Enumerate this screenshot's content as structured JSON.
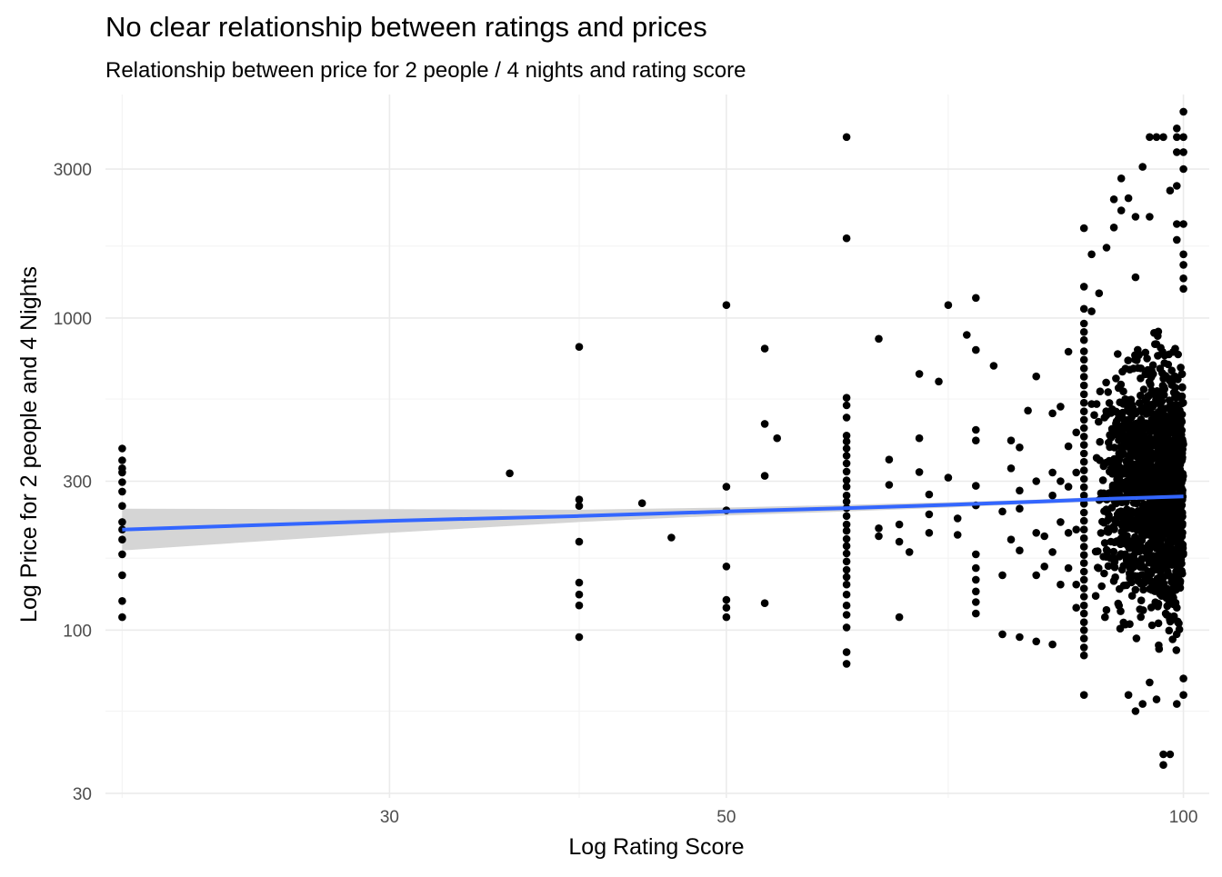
{
  "chart_data": {
    "type": "scatter",
    "title": "No clear relationship between ratings and prices",
    "subtitle": "Relationship between price for 2 people / 4 nights and rating score",
    "xlabel": "Log Rating Score",
    "ylabel": "Log Price for 2 people and 4 Nights",
    "x_scale": "log10",
    "y_scale": "log10",
    "xlim": [
      19.5,
      104
    ],
    "ylim": [
      29,
      5200
    ],
    "x_ticks": [
      30,
      50,
      100
    ],
    "x_tick_labels": [
      "30",
      "50",
      "100"
    ],
    "x_minor_gridlines": [
      20,
      40,
      70
    ],
    "y_ticks": [
      30,
      100,
      300,
      1000,
      3000
    ],
    "y_tick_labels": [
      "30",
      "100",
      "300",
      "1000",
      "3000"
    ],
    "y_minor_gridlines": [
      55,
      170,
      550,
      1700
    ],
    "grid": true,
    "legend": "none",
    "colors": {
      "points": "#000000",
      "trend_line": "#3366FF",
      "confidence_band": "#d3d3d3",
      "grid_major": "#ebebeb",
      "grid_minor": "#f4f4f4",
      "title": "#000000",
      "tick_label": "#4d4d4d"
    },
    "trend": {
      "method": "linear fit on log-log scale with confidence band",
      "x": [
        20,
        30,
        40,
        50,
        60,
        70,
        80,
        90,
        100
      ],
      "y": [
        210,
        224,
        232,
        240,
        246,
        252,
        258,
        264,
        268
      ],
      "ci_lower": [
        180,
        205,
        222,
        233,
        240,
        247,
        254,
        259,
        263
      ],
      "ci_upper": [
        245,
        244,
        243,
        247,
        252,
        257,
        262,
        268,
        273
      ]
    },
    "points": [
      [
        20,
        382
      ],
      [
        20,
        350
      ],
      [
        20,
        330
      ],
      [
        20,
        320
      ],
      [
        20,
        298
      ],
      [
        20,
        278
      ],
      [
        20,
        250
      ],
      [
        20,
        222
      ],
      [
        20,
        210
      ],
      [
        20,
        195
      ],
      [
        20,
        175
      ],
      [
        20,
        150
      ],
      [
        20,
        124
      ],
      [
        20,
        110
      ],
      [
        36,
        318
      ],
      [
        40,
        808
      ],
      [
        40,
        262
      ],
      [
        40,
        250
      ],
      [
        40,
        192
      ],
      [
        40,
        142
      ],
      [
        40,
        130
      ],
      [
        40,
        120
      ],
      [
        40,
        95
      ],
      [
        44,
        255
      ],
      [
        46,
        198
      ],
      [
        50,
        1100
      ],
      [
        50,
        288
      ],
      [
        50,
        242
      ],
      [
        50,
        160
      ],
      [
        50,
        125
      ],
      [
        50,
        118
      ],
      [
        50,
        110
      ],
      [
        53,
        798
      ],
      [
        53,
        458
      ],
      [
        53,
        312
      ],
      [
        53,
        122
      ],
      [
        54,
        412
      ],
      [
        60,
        3800
      ],
      [
        60,
        1800
      ],
      [
        60,
        555
      ],
      [
        60,
        525
      ],
      [
        60,
        480
      ],
      [
        60,
        420
      ],
      [
        60,
        402
      ],
      [
        60,
        382
      ],
      [
        60,
        362
      ],
      [
        60,
        342
      ],
      [
        60,
        322
      ],
      [
        60,
        302
      ],
      [
        60,
        288
      ],
      [
        60,
        270
      ],
      [
        60,
        258
      ],
      [
        60,
        246
      ],
      [
        60,
        232
      ],
      [
        60,
        218
      ],
      [
        60,
        208
      ],
      [
        60,
        196
      ],
      [
        60,
        186
      ],
      [
        60,
        176
      ],
      [
        60,
        166
      ],
      [
        60,
        156
      ],
      [
        60,
        148
      ],
      [
        60,
        140
      ],
      [
        60,
        130
      ],
      [
        60,
        120
      ],
      [
        60,
        112
      ],
      [
        60,
        102
      ],
      [
        60,
        85
      ],
      [
        60,
        78
      ],
      [
        63,
        858
      ],
      [
        63,
        212
      ],
      [
        63,
        200
      ],
      [
        64,
        352
      ],
      [
        64,
        292
      ],
      [
        65,
        218
      ],
      [
        65,
        192
      ],
      [
        65,
        110
      ],
      [
        66,
        178
      ],
      [
        67,
        321
      ],
      [
        67,
        412
      ],
      [
        67,
        662
      ],
      [
        68,
        272
      ],
      [
        68,
        235
      ],
      [
        68,
        205
      ],
      [
        69,
        626
      ],
      [
        70,
        1100
      ],
      [
        70,
        308
      ],
      [
        71,
        228
      ],
      [
        71,
        202
      ],
      [
        72,
        883
      ],
      [
        73,
        1160
      ],
      [
        73,
        790
      ],
      [
        73,
        438
      ],
      [
        73,
        405
      ],
      [
        73,
        290
      ],
      [
        73,
        251
      ],
      [
        73,
        175
      ],
      [
        73,
        158
      ],
      [
        73,
        145
      ],
      [
        73,
        133
      ],
      [
        73,
        123
      ],
      [
        73,
        113
      ],
      [
        75,
        703
      ],
      [
        76,
        240
      ],
      [
        76,
        150
      ],
      [
        76,
        97
      ],
      [
        77,
        405
      ],
      [
        77,
        330
      ],
      [
        77,
        195
      ],
      [
        78,
        385
      ],
      [
        78,
        280
      ],
      [
        78,
        245
      ],
      [
        78,
        180
      ],
      [
        78,
        95
      ],
      [
        79,
        505
      ],
      [
        80,
        650
      ],
      [
        80,
        300
      ],
      [
        80,
        205
      ],
      [
        80,
        150
      ],
      [
        80,
        92
      ],
      [
        81,
        200
      ],
      [
        81,
        160
      ],
      [
        82,
        495
      ],
      [
        82,
        320
      ],
      [
        82,
        270
      ],
      [
        82,
        178
      ],
      [
        82,
        90
      ],
      [
        83,
        520
      ],
      [
        83,
        300
      ],
      [
        83,
        222
      ],
      [
        83,
        140
      ],
      [
        84,
        780
      ],
      [
        84,
        388
      ],
      [
        84,
        288
      ],
      [
        84,
        205
      ],
      [
        84,
        158
      ],
      [
        85,
        430
      ],
      [
        85,
        320
      ],
      [
        85,
        210
      ],
      [
        85,
        140
      ],
      [
        85,
        118
      ],
      [
        86,
        1940
      ],
      [
        86,
        1260
      ],
      [
        86,
        1070
      ],
      [
        86,
        960
      ],
      [
        86,
        902
      ],
      [
        86,
        850
      ],
      [
        86,
        782
      ],
      [
        86,
        735
      ],
      [
        86,
        690
      ],
      [
        86,
        648
      ],
      [
        86,
        608
      ],
      [
        86,
        570
      ],
      [
        86,
        535
      ],
      [
        86,
        502
      ],
      [
        86,
        472
      ],
      [
        86,
        444
      ],
      [
        86,
        417
      ],
      [
        86,
        392
      ],
      [
        86,
        368
      ],
      [
        86,
        346
      ],
      [
        86,
        325
      ],
      [
        86,
        305
      ],
      [
        86,
        287
      ],
      [
        86,
        270
      ],
      [
        86,
        254
      ],
      [
        86,
        238
      ],
      [
        86,
        224
      ],
      [
        86,
        210
      ],
      [
        86,
        197
      ],
      [
        86,
        185
      ],
      [
        86,
        174
      ],
      [
        86,
        164
      ],
      [
        86,
        154
      ],
      [
        86,
        145
      ],
      [
        86,
        136
      ],
      [
        86,
        128
      ],
      [
        86,
        120
      ],
      [
        86,
        113
      ],
      [
        86,
        106
      ],
      [
        86,
        100
      ],
      [
        86,
        94
      ],
      [
        86,
        88
      ],
      [
        86,
        83
      ],
      [
        86,
        62
      ],
      [
        87,
        1600
      ],
      [
        87,
        1050
      ],
      [
        87,
        530
      ],
      [
        88,
        1200
      ],
      [
        89,
        1680
      ],
      [
        90,
        1950
      ],
      [
        90,
        2400
      ],
      [
        91,
        2800
      ],
      [
        91,
        2210
      ],
      [
        92,
        2420
      ],
      [
        93,
        2110
      ],
      [
        93,
        1350
      ],
      [
        94,
        3050
      ],
      [
        95,
        2110
      ],
      [
        95,
        3800
      ],
      [
        96,
        3800
      ],
      [
        97,
        3800
      ],
      [
        98,
        2560
      ],
      [
        99,
        4050
      ],
      [
        99,
        3800
      ],
      [
        99,
        3400
      ],
      [
        99,
        2650
      ],
      [
        99,
        2000
      ],
      [
        99,
        1780
      ],
      [
        92,
        62
      ],
      [
        93,
        55
      ],
      [
        94,
        58
      ],
      [
        95,
        68
      ],
      [
        96,
        60
      ],
      [
        97,
        40
      ],
      [
        97,
        37
      ],
      [
        98,
        40
      ],
      [
        99,
        58
      ],
      [
        100,
        4580
      ],
      [
        100,
        3800
      ],
      [
        100,
        3400
      ],
      [
        100,
        3000
      ],
      [
        100,
        2000
      ],
      [
        100,
        1600
      ],
      [
        100,
        1480
      ],
      [
        100,
        1340
      ],
      [
        100,
        1240
      ],
      [
        100,
        62
      ],
      [
        100,
        70
      ]
    ],
    "dense_cluster": {
      "note": "near-solid mass of points between these ratings and prices",
      "x_range": [
        87,
        100
      ],
      "y_range": [
        72,
        1080
      ],
      "count": 1400
    }
  }
}
